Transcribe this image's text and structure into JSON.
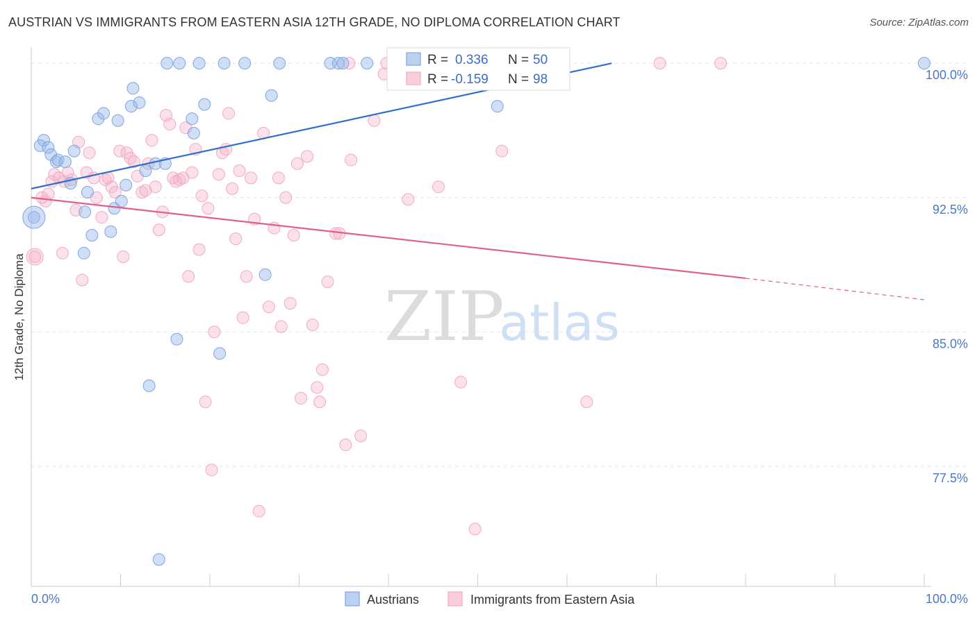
{
  "title": "AUSTRIAN VS IMMIGRANTS FROM EASTERN ASIA 12TH GRADE, NO DIPLOMA CORRELATION CHART",
  "source": "Source: ZipAtlas.com",
  "watermark": {
    "zip": "ZIP",
    "atlas": "atlas"
  },
  "chart_data": {
    "type": "scatter",
    "title": "AUSTRIAN VS IMMIGRANTS FROM EASTERN ASIA 12TH GRADE, NO DIPLOMA CORRELATION CHART",
    "xlabel": "",
    "ylabel": "12th Grade, No Diploma",
    "xlim": [
      0,
      100
    ],
    "ylim": [
      70.8,
      101.4
    ],
    "x_tick_labels": [
      "0.0%",
      "100.0%"
    ],
    "y_ticks": [
      77.5,
      85.0,
      92.5,
      100.0
    ],
    "y_tick_labels": [
      "77.5%",
      "85.0%",
      "92.5%",
      "100.0%"
    ],
    "grid": true,
    "legend_position": "bottom-center",
    "series": [
      {
        "name": "Austrians",
        "color": "#7fa6e0",
        "line_color": "#2e6fcc",
        "R_label": "R =",
        "R": "0.336",
        "N_label": "N =",
        "N": "50",
        "trend": {
          "x0": 0,
          "y0": 93.0,
          "x1": 65,
          "y1": 100.0
        },
        "points": [
          [
            0.3,
            91.4
          ],
          [
            1.0,
            95.4
          ],
          [
            1.4,
            95.7
          ],
          [
            1.9,
            95.3
          ],
          [
            2.2,
            94.9
          ],
          [
            2.8,
            94.5
          ],
          [
            3.0,
            94.6
          ],
          [
            3.8,
            94.5
          ],
          [
            4.4,
            93.3
          ],
          [
            4.8,
            95.1
          ],
          [
            5.9,
            89.4
          ],
          [
            6.0,
            91.7
          ],
          [
            6.3,
            92.8
          ],
          [
            6.8,
            90.4
          ],
          [
            7.5,
            96.9
          ],
          [
            8.1,
            97.2
          ],
          [
            8.9,
            90.6
          ],
          [
            9.3,
            91.9
          ],
          [
            9.7,
            96.8
          ],
          [
            10.1,
            92.3
          ],
          [
            10.6,
            93.2
          ],
          [
            11.2,
            97.6
          ],
          [
            11.4,
            98.6
          ],
          [
            12.1,
            97.8
          ],
          [
            12.8,
            94.0
          ],
          [
            13.2,
            82.0
          ],
          [
            13.9,
            94.4
          ],
          [
            14.3,
            72.3
          ],
          [
            15.0,
            94.4
          ],
          [
            15.2,
            100.0
          ],
          [
            16.3,
            84.6
          ],
          [
            16.6,
            100.0
          ],
          [
            18.0,
            96.9
          ],
          [
            18.2,
            96.1
          ],
          [
            18.8,
            100.0
          ],
          [
            19.4,
            97.7
          ],
          [
            21.1,
            83.8
          ],
          [
            21.6,
            100.0
          ],
          [
            23.9,
            100.0
          ],
          [
            26.2,
            88.2
          ],
          [
            26.9,
            98.2
          ],
          [
            27.8,
            100.0
          ],
          [
            33.5,
            100.0
          ],
          [
            34.4,
            100.0
          ],
          [
            34.9,
            100.0
          ],
          [
            37.6,
            100.0
          ],
          [
            42.0,
            100.0
          ],
          [
            45.0,
            100.0
          ],
          [
            52.2,
            97.6
          ],
          [
            100.0,
            100.0
          ]
        ]
      },
      {
        "name": "Immigrants from Eastern Asia",
        "color": "#f4a9c1",
        "line_color": "#e0608a",
        "R_label": "R =",
        "R": "-0.159",
        "N_label": "N =",
        "N": "98",
        "trend": {
          "x0": 0,
          "y0": 92.5,
          "x1": 80,
          "y1": 88.0,
          "x_dash_end": 100,
          "y_dash_end": 86.8
        },
        "points": [
          [
            0.4,
            89.2
          ],
          [
            1.2,
            92.5
          ],
          [
            1.6,
            92.3
          ],
          [
            1.9,
            92.7
          ],
          [
            2.3,
            93.4
          ],
          [
            2.6,
            93.8
          ],
          [
            3.1,
            93.6
          ],
          [
            3.5,
            89.4
          ],
          [
            3.7,
            93.4
          ],
          [
            4.1,
            93.9
          ],
          [
            4.5,
            93.5
          ],
          [
            5.0,
            91.8
          ],
          [
            5.3,
            95.6
          ],
          [
            5.7,
            87.9
          ],
          [
            6.2,
            93.9
          ],
          [
            6.5,
            95.0
          ],
          [
            7.0,
            93.6
          ],
          [
            7.3,
            92.5
          ],
          [
            7.9,
            91.4
          ],
          [
            8.3,
            93.5
          ],
          [
            8.6,
            93.6
          ],
          [
            9.0,
            93.1
          ],
          [
            9.4,
            92.8
          ],
          [
            9.9,
            95.1
          ],
          [
            10.3,
            89.2
          ],
          [
            10.7,
            95.0
          ],
          [
            11.1,
            94.7
          ],
          [
            11.5,
            94.5
          ],
          [
            11.9,
            93.7
          ],
          [
            12.4,
            92.8
          ],
          [
            12.8,
            92.9
          ],
          [
            13.1,
            94.4
          ],
          [
            13.5,
            95.7
          ],
          [
            13.9,
            93.1
          ],
          [
            14.3,
            90.7
          ],
          [
            14.7,
            91.7
          ],
          [
            15.1,
            97.1
          ],
          [
            15.5,
            96.6
          ],
          [
            15.9,
            93.6
          ],
          [
            16.2,
            93.4
          ],
          [
            16.6,
            93.5
          ],
          [
            17.0,
            93.6
          ],
          [
            17.3,
            96.4
          ],
          [
            17.6,
            88.1
          ],
          [
            18.0,
            93.9
          ],
          [
            18.4,
            95.2
          ],
          [
            18.8,
            89.6
          ],
          [
            19.1,
            92.6
          ],
          [
            19.5,
            81.1
          ],
          [
            19.8,
            91.9
          ],
          [
            20.2,
            77.3
          ],
          [
            20.5,
            85.0
          ],
          [
            21.0,
            93.8
          ],
          [
            21.4,
            95.0
          ],
          [
            21.8,
            95.2
          ],
          [
            22.1,
            97.2
          ],
          [
            22.5,
            93.0
          ],
          [
            22.9,
            90.2
          ],
          [
            23.3,
            94.0
          ],
          [
            23.7,
            85.8
          ],
          [
            24.1,
            88.1
          ],
          [
            24.6,
            93.6
          ],
          [
            25.0,
            91.3
          ],
          [
            25.5,
            75.0
          ],
          [
            26.0,
            96.1
          ],
          [
            26.6,
            86.4
          ],
          [
            27.2,
            90.8
          ],
          [
            27.7,
            93.6
          ],
          [
            28.0,
            85.3
          ],
          [
            28.5,
            92.5
          ],
          [
            29.0,
            86.6
          ],
          [
            29.4,
            90.4
          ],
          [
            29.8,
            94.4
          ],
          [
            30.2,
            81.3
          ],
          [
            30.9,
            94.8
          ],
          [
            31.5,
            85.4
          ],
          [
            32.0,
            81.9
          ],
          [
            32.3,
            81.1
          ],
          [
            32.6,
            82.9
          ],
          [
            33.2,
            87.8
          ],
          [
            34.1,
            90.5
          ],
          [
            34.5,
            90.5
          ],
          [
            35.2,
            78.7
          ],
          [
            35.8,
            94.6
          ],
          [
            36.9,
            79.2
          ],
          [
            38.4,
            96.8
          ],
          [
            39.5,
            99.4
          ],
          [
            42.2,
            92.4
          ],
          [
            45.6,
            93.1
          ],
          [
            48.1,
            82.2
          ],
          [
            49.7,
            74.0
          ],
          [
            52.7,
            95.1
          ],
          [
            62.2,
            81.1
          ],
          [
            70.4,
            100.0
          ],
          [
            77.2,
            100.0
          ],
          [
            40.6,
            100.0
          ],
          [
            39.8,
            100.0
          ],
          [
            35.6,
            100.0
          ]
        ]
      }
    ]
  }
}
